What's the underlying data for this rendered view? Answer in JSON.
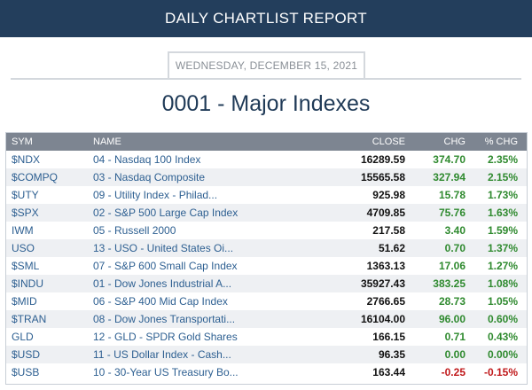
{
  "header": {
    "title": "DAILY CHARTLIST REPORT"
  },
  "report": {
    "date": "WEDNESDAY, DECEMBER 15, 2021",
    "title": "0001 - Major Indexes"
  },
  "table": {
    "columns": {
      "sym": "SYM",
      "name": "NAME",
      "close": "CLOSE",
      "chg": "CHG",
      "pct": "% CHG"
    },
    "colors": {
      "up": "#2f8a2f",
      "down": "#c0191b",
      "link": "#2d5f91",
      "header_bg": "#7d8591"
    },
    "rows": [
      {
        "sym": "$NDX",
        "name": "04 - Nasdaq 100 Index",
        "close": "16289.59",
        "chg": "374.70",
        "pct": "2.35%",
        "dir": "up"
      },
      {
        "sym": "$COMPQ",
        "name": "03 - Nasdaq Composite",
        "close": "15565.58",
        "chg": "327.94",
        "pct": "2.15%",
        "dir": "up"
      },
      {
        "sym": "$UTY",
        "name": "09 - Utility Index - Philad...",
        "close": "925.98",
        "chg": "15.78",
        "pct": "1.73%",
        "dir": "up"
      },
      {
        "sym": "$SPX",
        "name": "02 - S&P 500 Large Cap Index",
        "close": "4709.85",
        "chg": "75.76",
        "pct": "1.63%",
        "dir": "up"
      },
      {
        "sym": "IWM",
        "name": "05 - Russell 2000",
        "close": "217.58",
        "chg": "3.40",
        "pct": "1.59%",
        "dir": "up"
      },
      {
        "sym": "USO",
        "name": "13 - USO - United States Oi...",
        "close": "51.62",
        "chg": "0.70",
        "pct": "1.37%",
        "dir": "up"
      },
      {
        "sym": "$SML",
        "name": "07 - S&P 600 Small Cap Index",
        "close": "1363.13",
        "chg": "17.06",
        "pct": "1.27%",
        "dir": "up"
      },
      {
        "sym": "$INDU",
        "name": "01 - Dow Jones Industrial A...",
        "close": "35927.43",
        "chg": "383.25",
        "pct": "1.08%",
        "dir": "up"
      },
      {
        "sym": "$MID",
        "name": "06 - S&P 400 Mid Cap Index",
        "close": "2766.65",
        "chg": "28.73",
        "pct": "1.05%",
        "dir": "up"
      },
      {
        "sym": "$TRAN",
        "name": "08 - Dow Jones Transportati...",
        "close": "16104.00",
        "chg": "96.00",
        "pct": "0.60%",
        "dir": "up"
      },
      {
        "sym": "GLD",
        "name": "12 - GLD - SPDR Gold Shares",
        "close": "166.15",
        "chg": "0.71",
        "pct": "0.43%",
        "dir": "up"
      },
      {
        "sym": "$USD",
        "name": "11 - US Dollar Index - Cash...",
        "close": "96.35",
        "chg": "0.00",
        "pct": "0.00%",
        "dir": "flat"
      },
      {
        "sym": "$USB",
        "name": "10 - 30-Year US Treasury Bo...",
        "close": "163.44",
        "chg": "-0.25",
        "pct": "-0.15%",
        "dir": "down"
      }
    ]
  }
}
